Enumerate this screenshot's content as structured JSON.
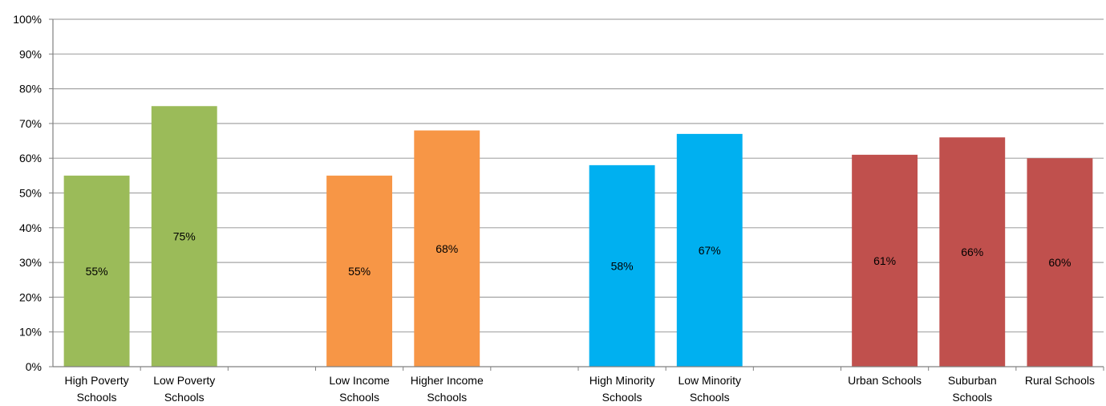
{
  "chart_data": {
    "type": "bar",
    "title": "",
    "xlabel": "",
    "ylabel": "",
    "ylim": [
      0,
      100
    ],
    "yticks": [
      "0%",
      "10%",
      "20%",
      "30%",
      "40%",
      "50%",
      "60%",
      "70%",
      "80%",
      "90%",
      "100%"
    ],
    "grid": true,
    "legend": "none",
    "categories": [
      {
        "line1": "High Poverty",
        "line2": "Schools",
        "value": 55,
        "label": "55%",
        "group": 0,
        "color": "#9BBB59"
      },
      {
        "line1": "Low Poverty",
        "line2": "Schools",
        "value": 75,
        "label": "75%",
        "group": 0,
        "color": "#9BBB59"
      },
      {
        "line1": "",
        "line2": "",
        "value": null,
        "label": "",
        "group": -1,
        "color": ""
      },
      {
        "line1": "Low Income",
        "line2": "Schools",
        "value": 55,
        "label": "55%",
        "group": 1,
        "color": "#F79646"
      },
      {
        "line1": "Higher Income",
        "line2": "Schools",
        "value": 68,
        "label": "68%",
        "group": 1,
        "color": "#F79646"
      },
      {
        "line1": "",
        "line2": "",
        "value": null,
        "label": "",
        "group": -1,
        "color": ""
      },
      {
        "line1": "High Minority",
        "line2": "Schools",
        "value": 58,
        "label": "58%",
        "group": 2,
        "color": "#00B0F0"
      },
      {
        "line1": "Low Minority",
        "line2": "Schools",
        "value": 67,
        "label": "67%",
        "group": 2,
        "color": "#00B0F0"
      },
      {
        "line1": "",
        "line2": "",
        "value": null,
        "label": "",
        "group": -1,
        "color": ""
      },
      {
        "line1": "Urban Schools",
        "line2": "",
        "value": 61,
        "label": "61%",
        "group": 3,
        "color": "#C0504D"
      },
      {
        "line1": "Suburban",
        "line2": "Schools",
        "value": 66,
        "label": "66%",
        "group": 3,
        "color": "#C0504D"
      },
      {
        "line1": "Rural Schools",
        "line2": "",
        "value": 60,
        "label": "60%",
        "group": 3,
        "color": "#C0504D"
      }
    ],
    "colors": {
      "grid": "#A6A6A6",
      "axis": "#808080"
    }
  }
}
